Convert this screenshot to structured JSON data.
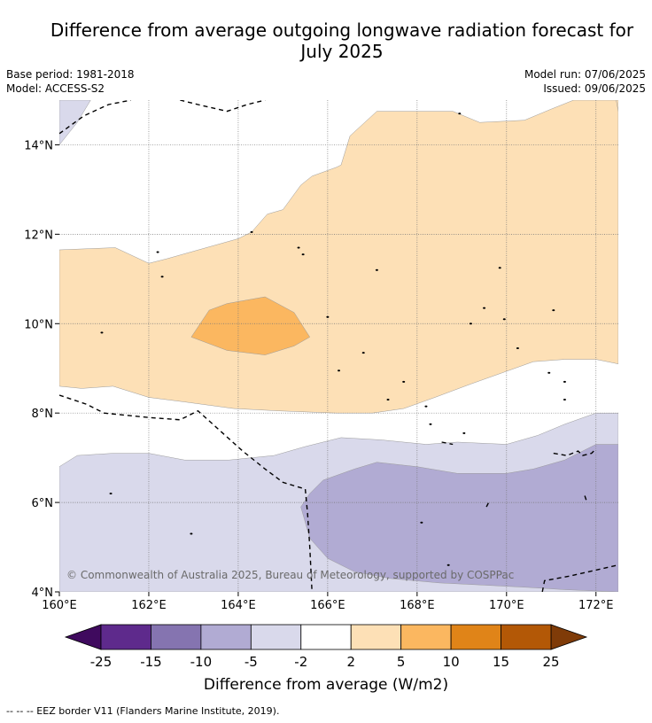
{
  "header": {
    "title_line1": "Difference from average outgoing longwave radiation forecast for",
    "title_line2": "July 2025",
    "base_period": "Base period: 1981-2018",
    "model": "Model: ACCESS-S2",
    "model_run": "Model run: 07/06/2025",
    "issued": "Issued: 09/06/2025"
  },
  "map": {
    "lon_range": [
      160,
      172.5
    ],
    "lat_range": [
      4,
      15
    ],
    "lon_ticks": [
      {
        "value": 160,
        "label": "160°E"
      },
      {
        "value": 162,
        "label": "162°E"
      },
      {
        "value": 164,
        "label": "164°E"
      },
      {
        "value": 166,
        "label": "166°E"
      },
      {
        "value": 168,
        "label": "168°E"
      },
      {
        "value": 170,
        "label": "170°E"
      },
      {
        "value": 172,
        "label": "172°E"
      }
    ],
    "lat_ticks": [
      {
        "value": 4,
        "label": "4°N"
      },
      {
        "value": 6,
        "label": "6°N"
      },
      {
        "value": 8,
        "label": "8°N"
      },
      {
        "value": 10,
        "label": "10°N"
      },
      {
        "value": 12,
        "label": "12°N"
      },
      {
        "value": 14,
        "label": "14°N"
      }
    ],
    "copyright": "© Commonwealth of Australia 2025, Bureau of Meteorology, supported by COSPPac",
    "regions": [
      {
        "name": "warm-2-5",
        "color": "#fde0b6",
        "points": [
          [
            160,
            11.65
          ],
          [
            161.25,
            11.7
          ],
          [
            162,
            11.35
          ],
          [
            162.4,
            11.45
          ],
          [
            164,
            11.9
          ],
          [
            164.3,
            12.05
          ],
          [
            164.65,
            12.45
          ],
          [
            165,
            12.55
          ],
          [
            165.4,
            13.1
          ],
          [
            165.65,
            13.3
          ],
          [
            166.2,
            13.5
          ],
          [
            166.3,
            13.55
          ],
          [
            166.5,
            14.2
          ],
          [
            167.1,
            14.75
          ],
          [
            168.8,
            14.75
          ],
          [
            169.4,
            14.5
          ],
          [
            170.4,
            14.55
          ],
          [
            171,
            14.8
          ],
          [
            171.5,
            15
          ],
          [
            172.5,
            15
          ],
          [
            172.5,
            9.1
          ],
          [
            172,
            9.2
          ],
          [
            171.3,
            9.2
          ],
          [
            170.6,
            9.15
          ],
          [
            169.9,
            8.9
          ],
          [
            169.2,
            8.65
          ],
          [
            168.4,
            8.35
          ],
          [
            167.7,
            8.1
          ],
          [
            167,
            8
          ],
          [
            166.2,
            8
          ],
          [
            164.9,
            8.05
          ],
          [
            163.9,
            8.1
          ],
          [
            162.8,
            8.25
          ],
          [
            162,
            8.35
          ],
          [
            161.2,
            8.6
          ],
          [
            160.5,
            8.55
          ],
          [
            160,
            8.6
          ]
        ]
      },
      {
        "name": "warm-5-10",
        "color": "#fbb760",
        "points": [
          [
            162.95,
            9.7
          ],
          [
            163.35,
            10.3
          ],
          [
            163.75,
            10.45
          ],
          [
            164.6,
            10.6
          ],
          [
            165.25,
            10.25
          ],
          [
            165.6,
            9.7
          ],
          [
            165.25,
            9.5
          ],
          [
            164.6,
            9.3
          ],
          [
            163.75,
            9.4
          ]
        ]
      },
      {
        "name": "warm-2-5-north-east",
        "color": "#fde0b6",
        "points": [
          [
            172.5,
            15
          ],
          [
            172.5,
            14.75
          ],
          [
            172.45,
            15
          ]
        ]
      },
      {
        "name": "cool-2-5",
        "color": "#d9d9eb",
        "points": [
          [
            160,
            6.8
          ],
          [
            160.4,
            7.05
          ],
          [
            161.2,
            7.1
          ],
          [
            162,
            7.1
          ],
          [
            162.8,
            6.95
          ],
          [
            163.8,
            6.95
          ],
          [
            164.8,
            7.05
          ],
          [
            165.5,
            7.25
          ],
          [
            166.3,
            7.45
          ],
          [
            167.2,
            7.4
          ],
          [
            168.2,
            7.3
          ],
          [
            168.9,
            7.35
          ],
          [
            170,
            7.3
          ],
          [
            170.7,
            7.5
          ],
          [
            171.3,
            7.75
          ],
          [
            172,
            8
          ],
          [
            172.5,
            8
          ],
          [
            172.5,
            4
          ],
          [
            160,
            4
          ]
        ]
      },
      {
        "name": "cool-5-10",
        "color": "#b1abd3",
        "points": [
          [
            165.4,
            5.9
          ],
          [
            165.6,
            6.2
          ],
          [
            165.9,
            6.5
          ],
          [
            166.6,
            6.75
          ],
          [
            167.1,
            6.9
          ],
          [
            168,
            6.8
          ],
          [
            168.9,
            6.65
          ],
          [
            170,
            6.65
          ],
          [
            170.6,
            6.75
          ],
          [
            171.3,
            6.95
          ],
          [
            172,
            7.3
          ],
          [
            172.5,
            7.3
          ],
          [
            172.5,
            4
          ],
          [
            171.3,
            4.05
          ],
          [
            170.5,
            4.1
          ],
          [
            169.5,
            4.15
          ],
          [
            168.5,
            4.2
          ],
          [
            167.4,
            4.3
          ],
          [
            166.6,
            4.45
          ],
          [
            166,
            4.75
          ],
          [
            165.6,
            5.2
          ]
        ]
      },
      {
        "name": "cool-2-5-north-west",
        "color": "#d9d9eb",
        "points": [
          [
            160,
            15
          ],
          [
            160.7,
            15
          ],
          [
            160.4,
            14.5
          ],
          [
            160,
            14
          ]
        ]
      }
    ],
    "eez_lines": [
      [
        [
          160,
          14.25
        ],
        [
          160.55,
          14.65
        ],
        [
          161.1,
          14.9
        ],
        [
          161.6,
          15
        ]
      ],
      [
        [
          162.7,
          15
        ],
        [
          163.1,
          14.9
        ],
        [
          163.75,
          14.75
        ],
        [
          164.2,
          14.9
        ],
        [
          164.6,
          15
        ]
      ],
      [
        [
          160,
          8.4
        ],
        [
          160.6,
          8.2
        ],
        [
          161,
          8
        ],
        [
          162,
          7.9
        ],
        [
          162.7,
          7.85
        ],
        [
          163.1,
          8.05
        ],
        [
          163.6,
          7.6
        ],
        [
          164.1,
          7.15
        ],
        [
          164.6,
          6.75
        ],
        [
          165,
          6.45
        ],
        [
          165.5,
          6.3
        ],
        [
          165.55,
          5.75
        ],
        [
          165.6,
          5
        ],
        [
          165.65,
          4
        ]
      ],
      [
        [
          170.8,
          4
        ],
        [
          170.85,
          4.25
        ],
        [
          171.4,
          4.35
        ],
        [
          172.5,
          4.6
        ]
      ],
      [
        [
          168.55,
          7.35
        ],
        [
          168.8,
          7.3
        ]
      ],
      [
        [
          171.05,
          7.1
        ],
        [
          171.35,
          7.05
        ],
        [
          171.6,
          7.15
        ],
        [
          171.7,
          7.05
        ],
        [
          171.9,
          7.1
        ],
        [
          172,
          7.2
        ]
      ],
      [
        [
          171.75,
          6.15
        ],
        [
          171.8,
          6
        ]
      ],
      [
        [
          169.55,
          5.9
        ],
        [
          169.6,
          6.0
        ]
      ]
    ],
    "islands": [
      [
        160.95,
        9.8
      ],
      [
        162.3,
        11.05
      ],
      [
        162.2,
        11.6
      ],
      [
        164.3,
        12.05
      ],
      [
        165.35,
        11.7
      ],
      [
        165.45,
        11.55
      ],
      [
        166,
        10.15
      ],
      [
        166.25,
        8.95
      ],
      [
        166.8,
        9.35
      ],
      [
        167.35,
        8.3
      ],
      [
        167.7,
        8.7
      ],
      [
        168.2,
        8.15
      ],
      [
        168.3,
        7.75
      ],
      [
        169.05,
        7.55
      ],
      [
        169.85,
        11.25
      ],
      [
        169.5,
        10.35
      ],
      [
        169.95,
        10.1
      ],
      [
        171.05,
        10.3
      ],
      [
        170.25,
        9.45
      ],
      [
        171.3,
        8.7
      ],
      [
        171.3,
        8.3
      ],
      [
        167.1,
        11.2
      ],
      [
        161.15,
        6.2
      ],
      [
        162.95,
        5.3
      ],
      [
        168.1,
        5.55
      ],
      [
        168.7,
        4.6
      ],
      [
        169.2,
        10.0
      ],
      [
        170.95,
        8.9
      ],
      [
        168.95,
        14.7
      ]
    ]
  },
  "colorbar": {
    "ticks": [
      "-25",
      "-15",
      "-10",
      "-5",
      "-2",
      "2",
      "5",
      "10",
      "15",
      "25"
    ],
    "colors": [
      "#5e2a8c",
      "#8574b0",
      "#b1abd3",
      "#d9d9eb",
      "#ffffff",
      "#fde0b6",
      "#fbb760",
      "#e08418",
      "#b35806"
    ],
    "under_color": "#3f0a5e",
    "over_color": "#7f3b08",
    "label": "Difference from average (W/m2)"
  },
  "footnote": "--  --  -- EEZ border V11 (Flanders Marine Institute, 2019)."
}
